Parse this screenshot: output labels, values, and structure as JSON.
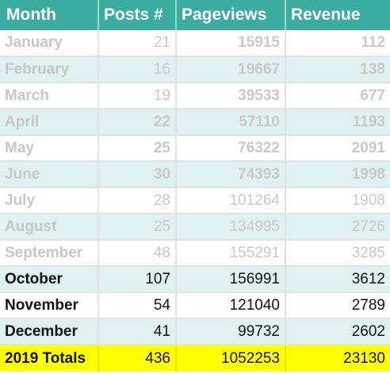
{
  "headers": {
    "month": "Month",
    "posts": "Posts #",
    "pageviews": "Pageviews",
    "revenue": "Revenue"
  },
  "rows": [
    {
      "month": "January",
      "posts": "21",
      "pageviews": "15915",
      "revenue": "112"
    },
    {
      "month": "February",
      "posts": "16",
      "pageviews": "19667",
      "revenue": "138"
    },
    {
      "month": "March",
      "posts": "19",
      "pageviews": "39533",
      "revenue": "677"
    },
    {
      "month": "April",
      "posts": "22",
      "pageviews": "57110",
      "revenue": "1193"
    },
    {
      "month": "May",
      "posts": "25",
      "pageviews": "76322",
      "revenue": "2091"
    },
    {
      "month": "June",
      "posts": "30",
      "pageviews": "74393",
      "revenue": "1998"
    },
    {
      "month": "July",
      "posts": "28",
      "pageviews": "101264",
      "revenue": "1908"
    },
    {
      "month": "August",
      "posts": "25",
      "pageviews": "134995",
      "revenue": "2726"
    },
    {
      "month": "September",
      "posts": "48",
      "pageviews": "155291",
      "revenue": "3285"
    },
    {
      "month": "October",
      "posts": "107",
      "pageviews": "156991",
      "revenue": "3612"
    },
    {
      "month": "November",
      "posts": "54",
      "pageviews": "121040",
      "revenue": "2789"
    },
    {
      "month": "December",
      "posts": "41",
      "pageviews": "99732",
      "revenue": "2602"
    }
  ],
  "totals": {
    "label": "2019 Totals",
    "posts": "436",
    "pageviews": "1052253",
    "revenue": "23130"
  },
  "colors": {
    "header_bg": "#3aada0",
    "header_text": "#ffffff",
    "stripe_bg": "#dff1f1",
    "faded_text": "#c9c9c9",
    "totals_bg": "#ffff00"
  }
}
